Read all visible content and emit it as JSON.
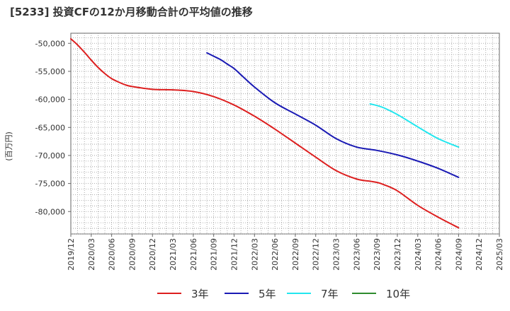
{
  "chart_data": {
    "type": "line",
    "title": "[5233]  投資CFの12か月移動合計の平均値の推移",
    "ylabel": "(百万円)",
    "xlabel": "",
    "ylim": [
      -84000,
      -48200
    ],
    "y_ticks": [
      -50000,
      -55000,
      -60000,
      -65000,
      -70000,
      -75000,
      -80000
    ],
    "y_tick_labels": [
      "-50,000",
      "-55,000",
      "-60,000",
      "-65,000",
      "-70,000",
      "-75,000",
      "-80,000"
    ],
    "x_tick_labels": [
      "2019/12",
      "2020/03",
      "2020/06",
      "2020/09",
      "2020/12",
      "2021/03",
      "2021/06",
      "2021/09",
      "2021/12",
      "2022/03",
      "2022/06",
      "2022/09",
      "2022/12",
      "2023/03",
      "2023/06",
      "2023/09",
      "2023/12",
      "2024/03",
      "2024/06",
      "2024/09",
      "2024/12",
      "2025/03"
    ],
    "grid": true,
    "legend_position": "bottom",
    "series": [
      {
        "name": "3年",
        "color": "#dd1f1f",
        "x": [
          "2019/12",
          "2020/01",
          "2020/02",
          "2020/03",
          "2020/04",
          "2020/05",
          "2020/06",
          "2020/07",
          "2020/08",
          "2020/09",
          "2020/12",
          "2021/03",
          "2021/06",
          "2021/09",
          "2021/12",
          "2022/03",
          "2022/06",
          "2022/09",
          "2022/12",
          "2023/03",
          "2023/06",
          "2023/08",
          "2023/09",
          "2023/10",
          "2023/12",
          "2024/03",
          "2024/06",
          "2024/09"
        ],
        "values": [
          -49200,
          -50300,
          -51600,
          -53000,
          -54300,
          -55400,
          -56300,
          -56900,
          -57400,
          -57700,
          -58200,
          -58300,
          -58600,
          -59500,
          -61000,
          -63000,
          -65300,
          -67800,
          -70300,
          -72700,
          -74200,
          -74600,
          -74800,
          -75200,
          -76300,
          -78900,
          -81000,
          -82900
        ]
      },
      {
        "name": "5年",
        "color": "#1a1ab4",
        "x": [
          "2021/08",
          "2021/09",
          "2021/10",
          "2021/11",
          "2021/12",
          "2022/01",
          "2022/03",
          "2022/06",
          "2022/09",
          "2022/12",
          "2023/03",
          "2023/06",
          "2023/09",
          "2023/12",
          "2024/03",
          "2024/06",
          "2024/09"
        ],
        "values": [
          -51700,
          -52300,
          -52900,
          -53700,
          -54500,
          -55600,
          -57800,
          -60600,
          -62600,
          -64600,
          -67000,
          -68500,
          -69100,
          -69900,
          -71000,
          -72300,
          -73900
        ]
      },
      {
        "name": "7年",
        "color": "#22e6ee",
        "x": [
          "2023/08",
          "2023/09",
          "2023/10",
          "2023/12",
          "2024/03",
          "2024/06",
          "2024/09"
        ],
        "values": [
          -60800,
          -61100,
          -61500,
          -62700,
          -64900,
          -67000,
          -68500
        ]
      },
      {
        "name": "10年",
        "color": "#2e8b2e",
        "x": [],
        "values": []
      }
    ]
  }
}
